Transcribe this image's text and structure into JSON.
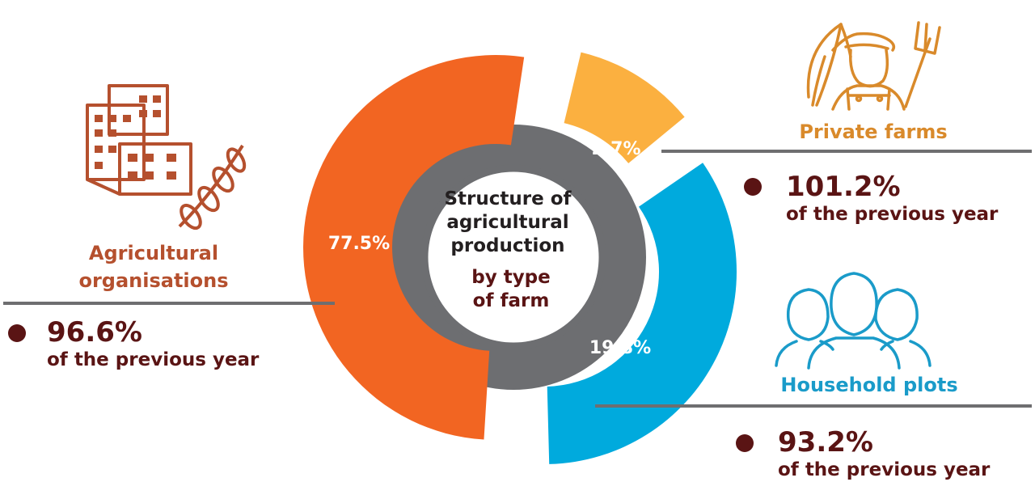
{
  "colors": {
    "agricultural": "#f26522",
    "private": "#fbb040",
    "household": "#00aadd",
    "ring": "#6d6e71",
    "dark_text": "#5a1414",
    "ag_title": "#b5502e",
    "private_title": "#d98a2b",
    "household_title": "#1a9bc9"
  },
  "center": {
    "line1": "Structure of",
    "line2": "agricultural",
    "line3": "production",
    "line4": "by type",
    "line5": "of farm"
  },
  "categories": {
    "agricultural": {
      "title1": "Agricultural",
      "title2": "organisations",
      "share_label": "77.5%",
      "change": "96.6%",
      "change_note": "of the previous year",
      "icon": "buildings-wheat-icon"
    },
    "private": {
      "title": "Private farms",
      "share_label": "2.7%",
      "change": "101.2%",
      "change_note": "of the previous year",
      "icon": "farmer-pitchfork-icon"
    },
    "household": {
      "title": "Household plots",
      "share_label": "19.8%",
      "change": "93.2%",
      "change_note": "of the previous year",
      "icon": "people-group-icon"
    }
  },
  "chart_data": {
    "type": "pie",
    "categories": [
      "Agricultural organisations",
      "Private farms",
      "Household plots"
    ],
    "values": [
      77.5,
      2.7,
      19.8
    ],
    "unit": "%",
    "change_vs_previous_year": [
      96.6,
      101.2,
      93.2
    ]
  }
}
